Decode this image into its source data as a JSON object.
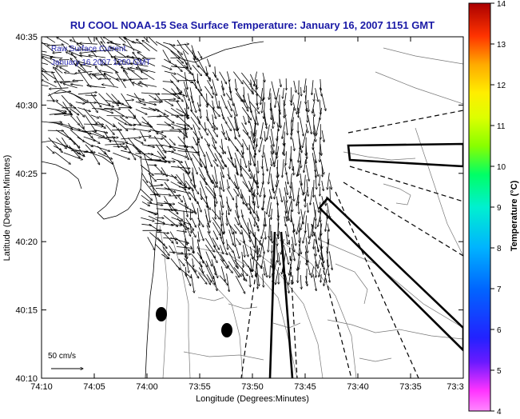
{
  "map": {
    "title": "RU COOL  NOAA-15  Sea Surface Temperature:  January 16, 2007 1151 GMT",
    "legend_line1": "Raw Surface Current",
    "legend_line2": "January 16 2007 1200 GMT",
    "scale_label": "50 cm/s",
    "xlabel": "Longitude (Degrees:Minutes)",
    "ylabel": "Latitude (Degrees:Minutes)",
    "x_ticks": [
      "74:10",
      "74:05",
      "74:00",
      "73:55",
      "73:50",
      "73:45",
      "73:40",
      "73:35",
      "73:3"
    ],
    "y_ticks": [
      "40:35",
      "40:30",
      "40:25",
      "40:20",
      "40:15",
      "40:10"
    ],
    "title_color": "#1a1aa6",
    "legend_color": "#2a2ab0"
  },
  "colorbar": {
    "label": "Temperature (°C)",
    "ticks": [
      "14",
      "13",
      "12",
      "11",
      "10",
      "9",
      "8",
      "7",
      "6",
      "5",
      "4"
    ],
    "range": [
      4,
      14
    ]
  }
}
